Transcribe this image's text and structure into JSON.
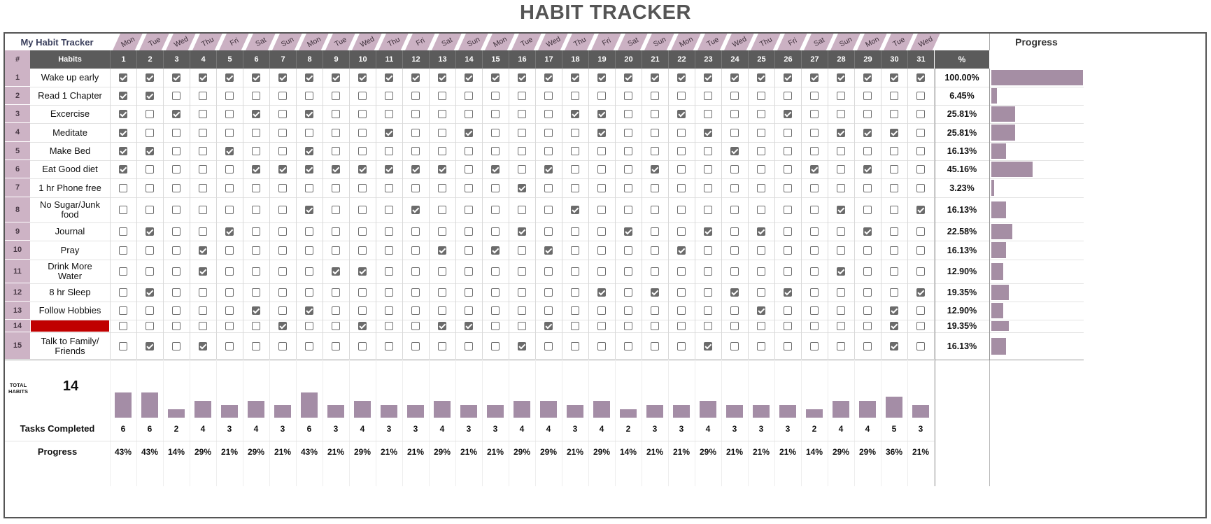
{
  "title": "HABIT TRACKER",
  "tracker_label": "My Habit Tracker",
  "progress_header": "Progress",
  "header": {
    "index": "#",
    "habits": "Habits",
    "percent": "%"
  },
  "weekdays": [
    "Mon",
    "Tue",
    "Wed",
    "Thu",
    "Fri",
    "Sat",
    "Sun",
    "Mon",
    "Tue",
    "Wed",
    "Thu",
    "Fri",
    "Sat",
    "Sun",
    "Mon",
    "Tue",
    "Wed",
    "Thu",
    "Fri",
    "Sat",
    "Sun",
    "Mon",
    "Tue",
    "Wed",
    "Thu",
    "Fri",
    "Sat",
    "Sun",
    "Mon",
    "Tue",
    "Wed"
  ],
  "days": [
    "1",
    "2",
    "3",
    "4",
    "5",
    "6",
    "7",
    "8",
    "9",
    "10",
    "11",
    "12",
    "13",
    "14",
    "15",
    "16",
    "17",
    "18",
    "19",
    "20",
    "21",
    "22",
    "23",
    "24",
    "25",
    "26",
    "27",
    "28",
    "29",
    "30",
    "31"
  ],
  "habits": [
    {
      "num": "1",
      "name": "Wake up early",
      "percent": "100.00%",
      "progress": 1.0,
      "checks": [
        1,
        1,
        1,
        1,
        1,
        1,
        1,
        1,
        1,
        1,
        1,
        1,
        1,
        1,
        1,
        1,
        1,
        1,
        1,
        1,
        1,
        1,
        1,
        1,
        1,
        1,
        1,
        1,
        1,
        1,
        1
      ]
    },
    {
      "num": "2",
      "name": "Read 1 Chapter",
      "percent": "6.45%",
      "progress": 0.0645,
      "checks": [
        1,
        1,
        0,
        0,
        0,
        0,
        0,
        0,
        0,
        0,
        0,
        0,
        0,
        0,
        0,
        0,
        0,
        0,
        0,
        0,
        0,
        0,
        0,
        0,
        0,
        0,
        0,
        0,
        0,
        0,
        0
      ]
    },
    {
      "num": "3",
      "name": "Excercise",
      "percent": "25.81%",
      "progress": 0.2581,
      "checks": [
        1,
        0,
        1,
        0,
        0,
        1,
        0,
        1,
        0,
        0,
        0,
        0,
        0,
        0,
        0,
        0,
        0,
        1,
        1,
        0,
        0,
        1,
        0,
        0,
        0,
        1,
        0,
        0,
        0,
        0,
        0
      ]
    },
    {
      "num": "4",
      "name": "Meditate",
      "percent": "25.81%",
      "progress": 0.2581,
      "checks": [
        1,
        0,
        0,
        0,
        0,
        0,
        0,
        0,
        0,
        0,
        1,
        0,
        0,
        1,
        0,
        0,
        0,
        0,
        1,
        0,
        0,
        0,
        1,
        0,
        0,
        0,
        0,
        1,
        1,
        1,
        0
      ]
    },
    {
      "num": "5",
      "name": "Make Bed",
      "percent": "16.13%",
      "progress": 0.1613,
      "checks": [
        1,
        1,
        0,
        0,
        1,
        0,
        0,
        1,
        0,
        0,
        0,
        0,
        0,
        0,
        0,
        0,
        0,
        0,
        0,
        0,
        0,
        0,
        0,
        1,
        0,
        0,
        0,
        0,
        0,
        0,
        0
      ]
    },
    {
      "num": "6",
      "name": "Eat Good diet",
      "percent": "45.16%",
      "progress": 0.4516,
      "checks": [
        1,
        0,
        0,
        0,
        0,
        1,
        1,
        1,
        1,
        1,
        1,
        1,
        1,
        0,
        1,
        0,
        1,
        0,
        0,
        0,
        1,
        0,
        0,
        0,
        0,
        0,
        1,
        0,
        1,
        0,
        0
      ]
    },
    {
      "num": "7",
      "name": "1 hr Phone free",
      "percent": "3.23%",
      "progress": 0.0323,
      "checks": [
        0,
        0,
        0,
        0,
        0,
        0,
        0,
        0,
        0,
        0,
        0,
        0,
        0,
        0,
        0,
        1,
        0,
        0,
        0,
        0,
        0,
        0,
        0,
        0,
        0,
        0,
        0,
        0,
        0,
        0,
        0
      ]
    },
    {
      "num": "8",
      "name": "No Sugar/Junk food",
      "percent": "16.13%",
      "progress": 0.1613,
      "checks": [
        0,
        0,
        0,
        0,
        0,
        0,
        0,
        1,
        0,
        0,
        0,
        1,
        0,
        0,
        0,
        0,
        0,
        1,
        0,
        0,
        0,
        0,
        0,
        0,
        0,
        0,
        0,
        1,
        0,
        0,
        1
      ]
    },
    {
      "num": "9",
      "name": "Journal",
      "percent": "22.58%",
      "progress": 0.2258,
      "checks": [
        0,
        1,
        0,
        0,
        1,
        0,
        0,
        0,
        0,
        0,
        0,
        0,
        0,
        0,
        0,
        1,
        0,
        0,
        0,
        1,
        0,
        0,
        1,
        0,
        1,
        0,
        0,
        0,
        1,
        0,
        0
      ]
    },
    {
      "num": "10",
      "name": "Pray",
      "percent": "16.13%",
      "progress": 0.1613,
      "checks": [
        0,
        0,
        0,
        1,
        0,
        0,
        0,
        0,
        0,
        0,
        0,
        0,
        1,
        0,
        1,
        0,
        1,
        0,
        0,
        0,
        0,
        1,
        0,
        0,
        0,
        0,
        0,
        0,
        0,
        0,
        0
      ]
    },
    {
      "num": "11",
      "name": "Drink More Water",
      "percent": "12.90%",
      "progress": 0.129,
      "checks": [
        0,
        0,
        0,
        1,
        0,
        0,
        0,
        0,
        1,
        1,
        0,
        0,
        0,
        0,
        0,
        0,
        0,
        0,
        0,
        0,
        0,
        0,
        0,
        0,
        0,
        0,
        0,
        1,
        0,
        0,
        0
      ]
    },
    {
      "num": "12",
      "name": "8 hr Sleep",
      "percent": "19.35%",
      "progress": 0.1935,
      "checks": [
        0,
        1,
        0,
        0,
        0,
        0,
        0,
        0,
        0,
        0,
        0,
        0,
        0,
        0,
        0,
        0,
        0,
        0,
        1,
        0,
        1,
        0,
        0,
        1,
        0,
        1,
        0,
        0,
        0,
        0,
        1
      ]
    },
    {
      "num": "13",
      "name": "Follow Hobbies",
      "percent": "12.90%",
      "progress": 0.129,
      "checks": [
        0,
        0,
        0,
        0,
        0,
        1,
        0,
        1,
        0,
        0,
        0,
        0,
        0,
        0,
        0,
        0,
        0,
        0,
        0,
        0,
        0,
        0,
        0,
        0,
        1,
        0,
        0,
        0,
        0,
        1,
        0
      ]
    },
    {
      "num": "14",
      "name": "",
      "percent": "19.35%",
      "progress": 0.1935,
      "checks": [
        0,
        0,
        0,
        0,
        0,
        0,
        1,
        0,
        0,
        1,
        0,
        0,
        1,
        1,
        0,
        0,
        1,
        0,
        0,
        0,
        0,
        0,
        0,
        0,
        0,
        0,
        0,
        0,
        0,
        1,
        0
      ],
      "highlight": "#c00000"
    },
    {
      "num": "15",
      "name": "Talk to Family/ Friends",
      "percent": "16.13%",
      "progress": 0.1613,
      "checks": [
        0,
        1,
        0,
        1,
        0,
        0,
        0,
        0,
        0,
        0,
        0,
        0,
        0,
        0,
        0,
        1,
        0,
        0,
        0,
        0,
        0,
        0,
        1,
        0,
        0,
        0,
        0,
        0,
        0,
        1,
        0
      ]
    }
  ],
  "total_habits_label": "TOTAL HABITS",
  "total_habits": "14",
  "tasks_completed_label": "Tasks Completed",
  "tasks_completed": [
    "6",
    "6",
    "2",
    "4",
    "3",
    "4",
    "3",
    "6",
    "3",
    "4",
    "3",
    "3",
    "4",
    "3",
    "3",
    "4",
    "4",
    "3",
    "4",
    "2",
    "3",
    "3",
    "4",
    "3",
    "3",
    "3",
    "2",
    "4",
    "4",
    "5",
    "3"
  ],
  "progress_label": "Progress",
  "daily_progress": [
    "43%",
    "43%",
    "14%",
    "29%",
    "21%",
    "29%",
    "21%",
    "43%",
    "21%",
    "29%",
    "21%",
    "21%",
    "29%",
    "21%",
    "21%",
    "29%",
    "29%",
    "21%",
    "29%",
    "14%",
    "21%",
    "21%",
    "29%",
    "21%",
    "21%",
    "21%",
    "14%",
    "29%",
    "29%",
    "36%",
    "21%"
  ],
  "colors": {
    "accent": "#a58ea4",
    "header_dark": "#5b5b5b",
    "weekday_band": "#cbb1c3",
    "highlight_red": "#c00000"
  }
}
